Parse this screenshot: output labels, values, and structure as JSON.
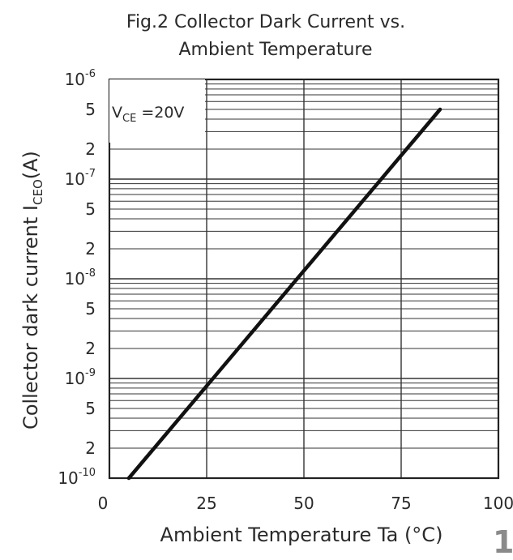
{
  "chart_data": {
    "type": "line",
    "title": "Fig.2 Collector Dark Current vs. Ambient Temperature",
    "title_lines": [
      "Fig.2  Collector  Dark  Current  vs.",
      "Ambient  Temperature"
    ],
    "xlabel": "Ambient  Temperature  Ta  (°C)",
    "ylabel": {
      "prefix": "Collector  dark  current  I",
      "sub": "CEO",
      "suffix": "(A)"
    },
    "x_ticks": [
      "0",
      "25",
      "50",
      "75",
      "100"
    ],
    "y_decade_labels": [
      {
        "base": "10",
        "exp": "-6"
      },
      {
        "base": "10",
        "exp": "-7"
      },
      {
        "base": "10",
        "exp": "-8"
      },
      {
        "base": "10",
        "exp": "-9"
      },
      {
        "base": "10",
        "exp": "-10"
      }
    ],
    "y_minor_labels": [
      "5",
      "2"
    ],
    "xlim": [
      0,
      100
    ],
    "ylim": [
      1e-10,
      1e-06
    ],
    "yscale": "log",
    "grid": true,
    "annotation": {
      "prefix": "V",
      "sub": "CE",
      "suffix": " =20V"
    },
    "series": [
      {
        "x": [
          5,
          85
        ],
        "y": [
          1e-10,
          5e-07
        ],
        "color": "#111111"
      }
    ]
  },
  "page_mark": "1"
}
